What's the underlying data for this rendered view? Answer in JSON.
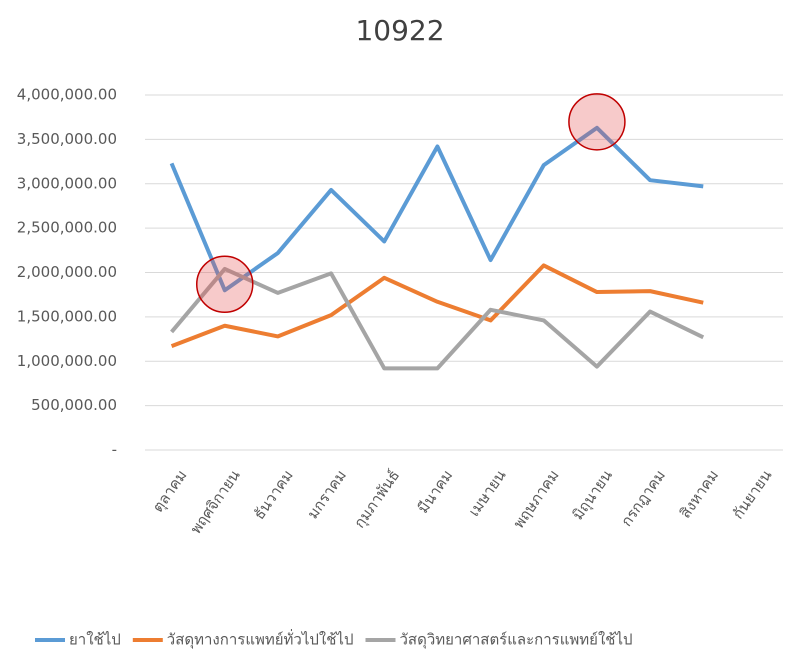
{
  "chart_data": {
    "type": "line",
    "title": "10922",
    "categories": [
      "ตุลาคม",
      "พฤศจิกายน",
      "ธันวาคม",
      "มกราคม",
      "กุมภาพันธ์",
      "มีนาคม",
      "เมษายน",
      "พฤษภาคม",
      "มิถุนายน",
      "กรกฎาคม",
      "สิงหาคม",
      "กันยายน"
    ],
    "series": [
      {
        "name": "ยาใช้ไป",
        "color": "#5b9bd5",
        "values": [
          3230000,
          1800000,
          2220000,
          2930000,
          2350000,
          3420000,
          2140000,
          3210000,
          3630000,
          3040000,
          2970000,
          null
        ]
      },
      {
        "name": "วัสดุทางการแพทย์ทั่วไปใช้ไป",
        "color": "#ed7d31",
        "values": [
          1170000,
          1400000,
          1280000,
          1520000,
          1940000,
          1670000,
          1460000,
          2080000,
          1780000,
          1790000,
          1660000,
          null
        ]
      },
      {
        "name": "วัสดุวิทยาศาสตร์และการแพทย์ใช้ไป",
        "color": "#a5a5a5",
        "values": [
          1330000,
          2040000,
          1770000,
          1990000,
          920000,
          920000,
          1580000,
          1460000,
          940000,
          1560000,
          1270000,
          null
        ]
      }
    ],
    "ylim": [
      0,
      4000000
    ],
    "yticks": [
      {
        "value": 0,
        "label": "-"
      },
      {
        "value": 500000,
        "label": "500,000.00"
      },
      {
        "value": 1000000,
        "label": "1,000,000.00"
      },
      {
        "value": 1500000,
        "label": "1,500,000.00"
      },
      {
        "value": 2000000,
        "label": "2,000,000.00"
      },
      {
        "value": 2500000,
        "label": "2,500,000.00"
      },
      {
        "value": 3000000,
        "label": "3,000,000.00"
      },
      {
        "value": 3500000,
        "label": "3,500,000.00"
      },
      {
        "value": 4000000,
        "label": "4,000,000.00"
      }
    ],
    "grid": true,
    "legend": "bottom",
    "highlights": [
      {
        "series": 0,
        "index": 1
      },
      {
        "series": 0,
        "index": 8
      }
    ]
  }
}
